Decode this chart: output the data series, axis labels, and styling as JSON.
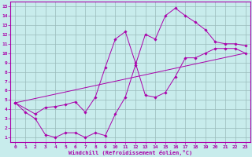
{
  "xlabel": "Windchill (Refroidissement éolien,°C)",
  "bg_color": "#c8ecec",
  "line_color": "#aa00aa",
  "grid_color": "#99bbbb",
  "xlim": [
    -0.5,
    23.5
  ],
  "ylim": [
    0.5,
    15.5
  ],
  "xticks": [
    0,
    1,
    2,
    3,
    4,
    5,
    6,
    7,
    8,
    9,
    10,
    11,
    12,
    13,
    14,
    15,
    16,
    17,
    18,
    19,
    20,
    21,
    22,
    23
  ],
  "yticks": [
    1,
    2,
    3,
    4,
    5,
    6,
    7,
    8,
    9,
    10,
    11,
    12,
    13,
    14,
    15
  ],
  "line1_x": [
    0,
    1,
    2,
    3,
    4,
    5,
    6,
    7,
    8,
    9,
    10,
    11,
    12,
    13,
    14,
    15,
    16,
    17,
    18,
    19,
    20,
    21,
    22,
    23
  ],
  "line1_y": [
    4.7,
    3.7,
    3.0,
    1.3,
    1.0,
    1.5,
    1.5,
    1.0,
    1.5,
    1.2,
    3.5,
    5.3,
    8.7,
    12.0,
    11.5,
    14.0,
    14.8,
    14.0,
    13.3,
    12.5,
    11.2,
    11.0,
    11.0,
    10.8
  ],
  "line2_x": [
    0,
    2,
    3,
    4,
    5,
    6,
    7,
    8,
    9,
    10,
    11,
    12,
    13,
    14,
    15,
    16,
    17,
    18,
    19,
    20,
    21,
    22,
    23
  ],
  "line2_y": [
    4.7,
    3.5,
    4.2,
    4.3,
    4.5,
    4.8,
    3.7,
    5.3,
    8.5,
    11.5,
    12.3,
    9.0,
    5.5,
    5.3,
    5.8,
    7.5,
    9.5,
    9.5,
    10.0,
    10.5,
    10.5,
    10.5,
    10.0
  ],
  "line3_x": [
    0,
    23
  ],
  "line3_y": [
    4.7,
    10.0
  ]
}
